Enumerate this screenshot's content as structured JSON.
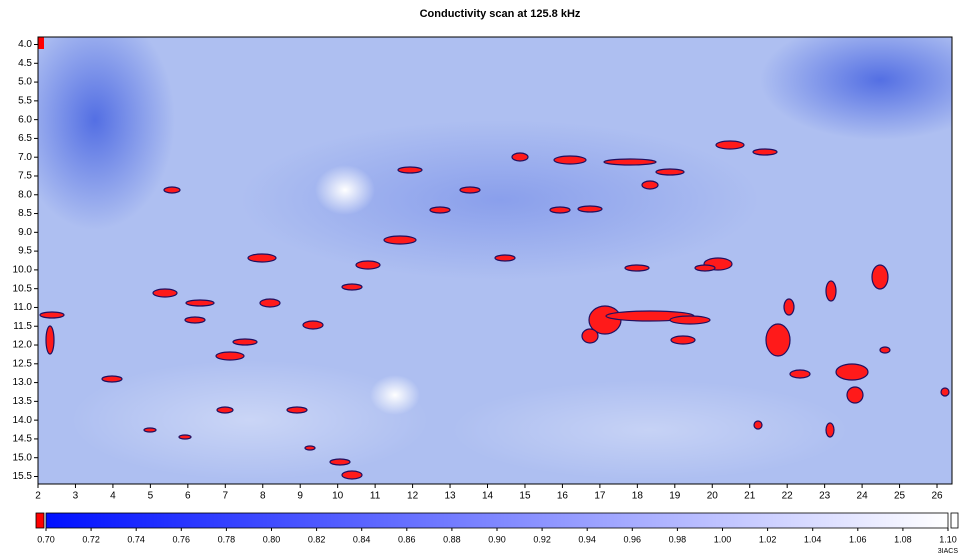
{
  "chart_data": {
    "type": "heatmap",
    "title": "Conductivity scan at 125.8 kHz",
    "xlim": [
      2,
      26.4
    ],
    "xticks": [
      2,
      3,
      4,
      5,
      6,
      7,
      8,
      9,
      10,
      11,
      12,
      13,
      14,
      15,
      16,
      17,
      18,
      19,
      20,
      21,
      22,
      23,
      24,
      25,
      26
    ],
    "ylim": [
      3.8,
      15.7
    ],
    "y_inverted": true,
    "yticks": [
      {
        "value": 4,
        "label": "4.0"
      },
      4.5,
      {
        "value": 5,
        "label": "5.0"
      },
      5.5,
      {
        "value": 6,
        "label": "6.0"
      },
      6.5,
      {
        "value": 7,
        "label": "7.0"
      },
      7.5,
      {
        "value": 8,
        "label": "8.0"
      },
      8.5,
      {
        "value": 9,
        "label": "9.0"
      },
      9.5,
      {
        "value": 10,
        "label": "10.0"
      },
      10.5,
      {
        "value": 11,
        "label": "11.0"
      },
      11.5,
      {
        "value": 12,
        "label": "12.0"
      },
      12.5,
      {
        "value": 13,
        "label": "13.0"
      },
      13.5,
      {
        "value": 14,
        "label": "14.0"
      },
      14.5,
      {
        "value": 15,
        "label": "15.0"
      },
      15.5
    ],
    "colorbar": {
      "lim": [
        0.7,
        1.1
      ],
      "low_color": "#0010ff",
      "high_color": "#ffffff",
      "under_color": "#ff0000",
      "over_color": "#ffffff",
      "ticks": [
        {
          "value": 0.7,
          "label": "0.70"
        },
        0.72,
        0.74,
        0.76,
        0.78,
        {
          "value": 0.8,
          "label": "0.80"
        },
        0.82,
        0.84,
        0.86,
        0.88,
        {
          "value": 0.9,
          "label": "0.90"
        },
        0.92,
        0.94,
        0.96,
        0.98,
        {
          "value": 1,
          "label": "1.00"
        },
        1.02,
        1.04,
        1.06,
        1.08,
        {
          "value": 1.1,
          "label": "1.10"
        }
      ]
    },
    "credit": "3IACS"
  }
}
